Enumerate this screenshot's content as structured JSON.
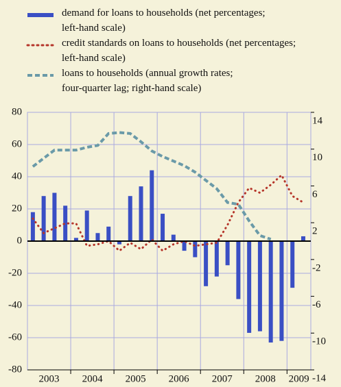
{
  "chart_data": {
    "type": "bar-line",
    "year_labels": [
      "2003",
      "2004",
      "2005",
      "2006",
      "2007",
      "2008",
      "2009"
    ],
    "series": [
      {
        "name": "demand for loans to households (net percentages;\nleft-hand scale)",
        "type": "bar",
        "color": "#3a4fc4",
        "values": [
          18,
          28,
          30,
          22,
          2,
          19,
          5,
          9,
          -2,
          28,
          34,
          44,
          17,
          4,
          -6,
          -10,
          -28,
          -22,
          -15,
          -36,
          -57,
          -56,
          -63,
          -62,
          -29,
          3
        ]
      },
      {
        "name": "credit standards on loans to households (net percentages;\nleft-hand scale)",
        "type": "dotted",
        "color": "#b5352a",
        "values": [
          14,
          5,
          8,
          11,
          11,
          -3,
          -2,
          0,
          -6,
          -1,
          -5,
          1,
          -6,
          -2,
          0,
          -3,
          -2,
          -1,
          10,
          24,
          33,
          30,
          35,
          41,
          28,
          24
        ]
      },
      {
        "name": "loans to households (annual growth rates;\nfour-quarter lag; right-hand scale)",
        "type": "dashed",
        "color": "#6a9aa8",
        "axis": "y2",
        "values": [
          8.1,
          9.0,
          9.9,
          9.9,
          9.9,
          10.2,
          10.4,
          11.7,
          11.8,
          11.7,
          10.8,
          9.8,
          9.2,
          8.7,
          8.2,
          7.5,
          6.6,
          5.7,
          4.2,
          4.0,
          2.2,
          0.6,
          0.2,
          null,
          null,
          null
        ]
      }
    ],
    "ylim": [
      -80,
      80
    ],
    "yticks": [
      -80,
      -60,
      -40,
      -20,
      0,
      20,
      40,
      60,
      80
    ],
    "y2lim": [
      -14,
      14
    ],
    "y2ticks": [
      -14,
      -10,
      -6,
      -2,
      2,
      6,
      10,
      14
    ],
    "grid": true
  }
}
